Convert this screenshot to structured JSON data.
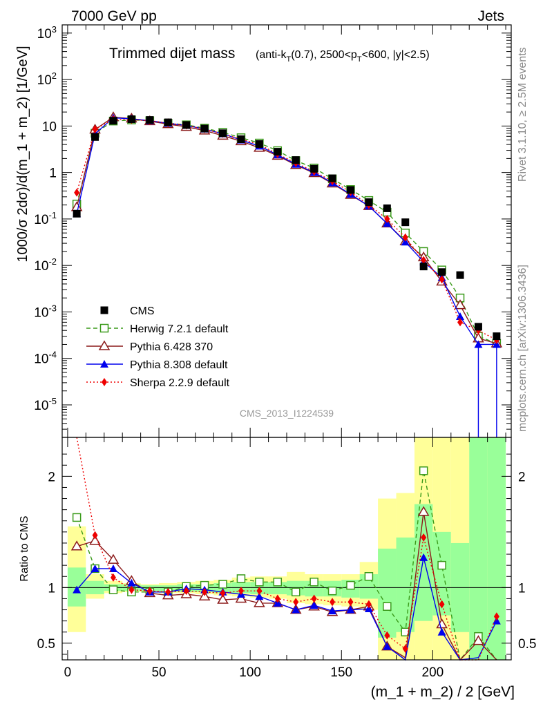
{
  "header": {
    "left": "7000 GeV pp",
    "right": "Jets"
  },
  "side_labels": {
    "rivet": "Rivet 3.1.10, ≥ 2.5M events",
    "mcplots": "mcplots.cern.ch [arXiv:1306.3436]"
  },
  "watermark": "CMS_2013_I1224539",
  "colors": {
    "cms": "#000000",
    "herwig": "#3a9a1a",
    "pythia6": "#8b1a1a",
    "pythia8": "#0000ee",
    "sherpa": "#ee0000",
    "band_yellow": "#ffff99",
    "band_green": "#99ff99"
  },
  "chart_data": [
    {
      "type": "scatter",
      "title": "Trimmed dijet mass",
      "title_sub": "(anti-k_T(0.7), 2500<p_T<600, |y|<2.5)",
      "ylabel": "1000/σ 2dσ)/d(m_1 + m_2) [1/GeV]",
      "yscale": "log",
      "ylim": [
        2e-06,
        1500
      ],
      "xlim": [
        -3,
        243
      ],
      "x": [
        5,
        15,
        25,
        35,
        45,
        55,
        65,
        75,
        85,
        95,
        105,
        115,
        125,
        135,
        145,
        155,
        165,
        175,
        185,
        195,
        205,
        215,
        225,
        235
      ],
      "series": [
        {
          "name": "CMS",
          "key": "cms",
          "marker": "square",
          "values": [
            0.13,
            5.8,
            13.0,
            14.0,
            13.5,
            12.0,
            10.5,
            8.8,
            7.0,
            5.2,
            4.1,
            2.8,
            1.85,
            1.2,
            0.75,
            0.42,
            0.23,
            0.17,
            0.085,
            0.0095,
            0.0072,
            0.0062,
            0.00048,
            0.0003
          ]
        },
        {
          "name": "Herwig 7.2.1 default",
          "key": "herwig",
          "marker": "open-square",
          "dash": "dashed",
          "values": [
            0.21,
            7.0,
            12.8,
            13.5,
            13.0,
            11.5,
            10.6,
            9.0,
            7.3,
            5.6,
            4.3,
            2.95,
            1.8,
            1.25,
            0.73,
            0.43,
            0.25,
            0.14,
            0.05,
            0.02,
            0.008,
            0.002,
            0.0003,
            0.00021
          ]
        },
        {
          "name": "Pythia 6.428 370",
          "key": "pythia6",
          "marker": "open-triangle",
          "dash": "solid",
          "values": [
            0.18,
            8.4,
            15.5,
            14.5,
            12.7,
            11.0,
            9.6,
            8.0,
            6.2,
            4.7,
            3.4,
            2.3,
            1.45,
            0.97,
            0.58,
            0.33,
            0.19,
            0.08,
            0.033,
            0.015,
            0.0045,
            0.0014,
            0.00027,
            0.00021
          ]
        },
        {
          "name": "Pythia 8.308 default",
          "key": "pythia8",
          "marker": "triangle",
          "dash": "solid",
          "values": [
            0.13,
            6.8,
            15.0,
            14.3,
            13.0,
            11.4,
            10.3,
            8.6,
            6.8,
            5.0,
            3.7,
            2.4,
            1.5,
            1.0,
            0.6,
            0.34,
            0.19,
            0.08,
            0.032,
            0.012,
            0.0055,
            0.0008,
            0.0002,
            0.0002
          ]
        },
        {
          "name": "Sherpa 2.2.9 default",
          "key": "sherpa",
          "marker": "diamond",
          "dash": "dotted",
          "values": [
            0.37,
            8.5,
            14.0,
            13.6,
            13.1,
            11.5,
            10.3,
            8.6,
            6.8,
            5.2,
            4.0,
            2.5,
            1.6,
            1.05,
            0.65,
            0.38,
            0.2,
            0.1,
            0.04,
            0.013,
            0.005,
            0.0006,
            0.0004,
            0.00025
          ]
        }
      ],
      "legend": [
        "cms",
        "herwig",
        "pythia6",
        "pythia8",
        "sherpa"
      ],
      "legend_position": "bottom-left"
    },
    {
      "type": "line",
      "ylabel": "Ratio to CMS",
      "xlabel": "(m_1 + m_2) / 2 [GeV]",
      "ylim": [
        0.35,
        2.35
      ],
      "yticks": [
        0.5,
        1,
        2
      ],
      "xticks": [
        0,
        50,
        100,
        150,
        200
      ],
      "bands": {
        "edges": [
          0,
          10,
          20,
          30,
          40,
          50,
          60,
          70,
          80,
          90,
          100,
          110,
          120,
          130,
          140,
          150,
          160,
          170,
          180,
          190,
          200,
          210,
          220,
          230,
          240
        ],
        "yellow_low": [
          0.6,
          0.9,
          0.95,
          0.96,
          0.96,
          0.95,
          0.95,
          0.94,
          0.93,
          0.92,
          0.91,
          0.9,
          0.86,
          0.85,
          0.84,
          0.83,
          0.8,
          0.35,
          0.35,
          0.35,
          0.35,
          0.35,
          0.35,
          0.35
        ],
        "yellow_high": [
          1.55,
          1.12,
          1.06,
          1.04,
          1.03,
          1.04,
          1.05,
          1.06,
          1.07,
          1.09,
          1.1,
          1.1,
          1.14,
          1.12,
          1.12,
          1.12,
          1.23,
          1.8,
          1.85,
          2.35,
          2.35,
          2.35,
          2.35,
          2.35
        ],
        "green_low": [
          0.83,
          0.94,
          0.97,
          0.97,
          0.97,
          0.96,
          0.96,
          0.96,
          0.95,
          0.95,
          0.94,
          0.94,
          0.93,
          0.92,
          0.92,
          0.91,
          0.9,
          0.55,
          0.6,
          0.7,
          0.75,
          0.6,
          0.35,
          0.35
        ],
        "green_high": [
          1.18,
          1.06,
          1.03,
          1.03,
          1.02,
          1.02,
          1.03,
          1.03,
          1.04,
          1.05,
          1.05,
          1.05,
          1.06,
          1.06,
          1.06,
          1.07,
          1.12,
          1.35,
          1.45,
          1.75,
          1.5,
          1.4,
          2.35,
          2.35
        ]
      },
      "x": [
        5,
        15,
        25,
        35,
        45,
        55,
        65,
        75,
        85,
        95,
        105,
        115,
        125,
        135,
        145,
        155,
        165,
        175,
        185,
        195,
        205,
        215,
        225,
        235
      ],
      "series": [
        {
          "key": "herwig",
          "values": [
            1.63,
            1.17,
            0.98,
            0.96,
            0.96,
            0.96,
            1.01,
            1.02,
            1.03,
            1.08,
            1.05,
            1.05,
            0.96,
            1.05,
            0.97,
            1.02,
            1.1,
            0.83,
            0.6,
            2.05,
            1.2,
            0.3,
            0.56,
            0.3
          ]
        },
        {
          "key": "pythia6",
          "values": [
            1.37,
            1.42,
            1.25,
            1.06,
            0.95,
            0.93,
            0.94,
            0.92,
            0.89,
            0.9,
            0.86,
            0.86,
            0.8,
            0.83,
            0.78,
            0.8,
            0.83,
            0.47,
            0.37,
            1.68,
            0.67,
            0.3,
            0.52,
            0.3
          ]
        },
        {
          "key": "pythia8",
          "values": [
            0.98,
            1.17,
            1.17,
            1.04,
            0.96,
            0.96,
            0.99,
            0.98,
            0.96,
            0.94,
            0.92,
            0.86,
            0.8,
            0.84,
            0.79,
            0.8,
            0.81,
            0.47,
            0.3,
            1.27,
            0.6,
            0.25,
            0.37,
            0.7
          ]
        },
        {
          "key": "sherpa",
          "values": [
            2.85,
            1.47,
            1.09,
            0.98,
            0.97,
            0.96,
            0.97,
            0.96,
            0.95,
            0.97,
            0.97,
            0.9,
            0.87,
            0.9,
            0.87,
            0.87,
            0.85,
            0.57,
            0.45,
            1.45,
            0.85,
            0.3,
            0.3,
            0.74
          ]
        }
      ]
    }
  ]
}
